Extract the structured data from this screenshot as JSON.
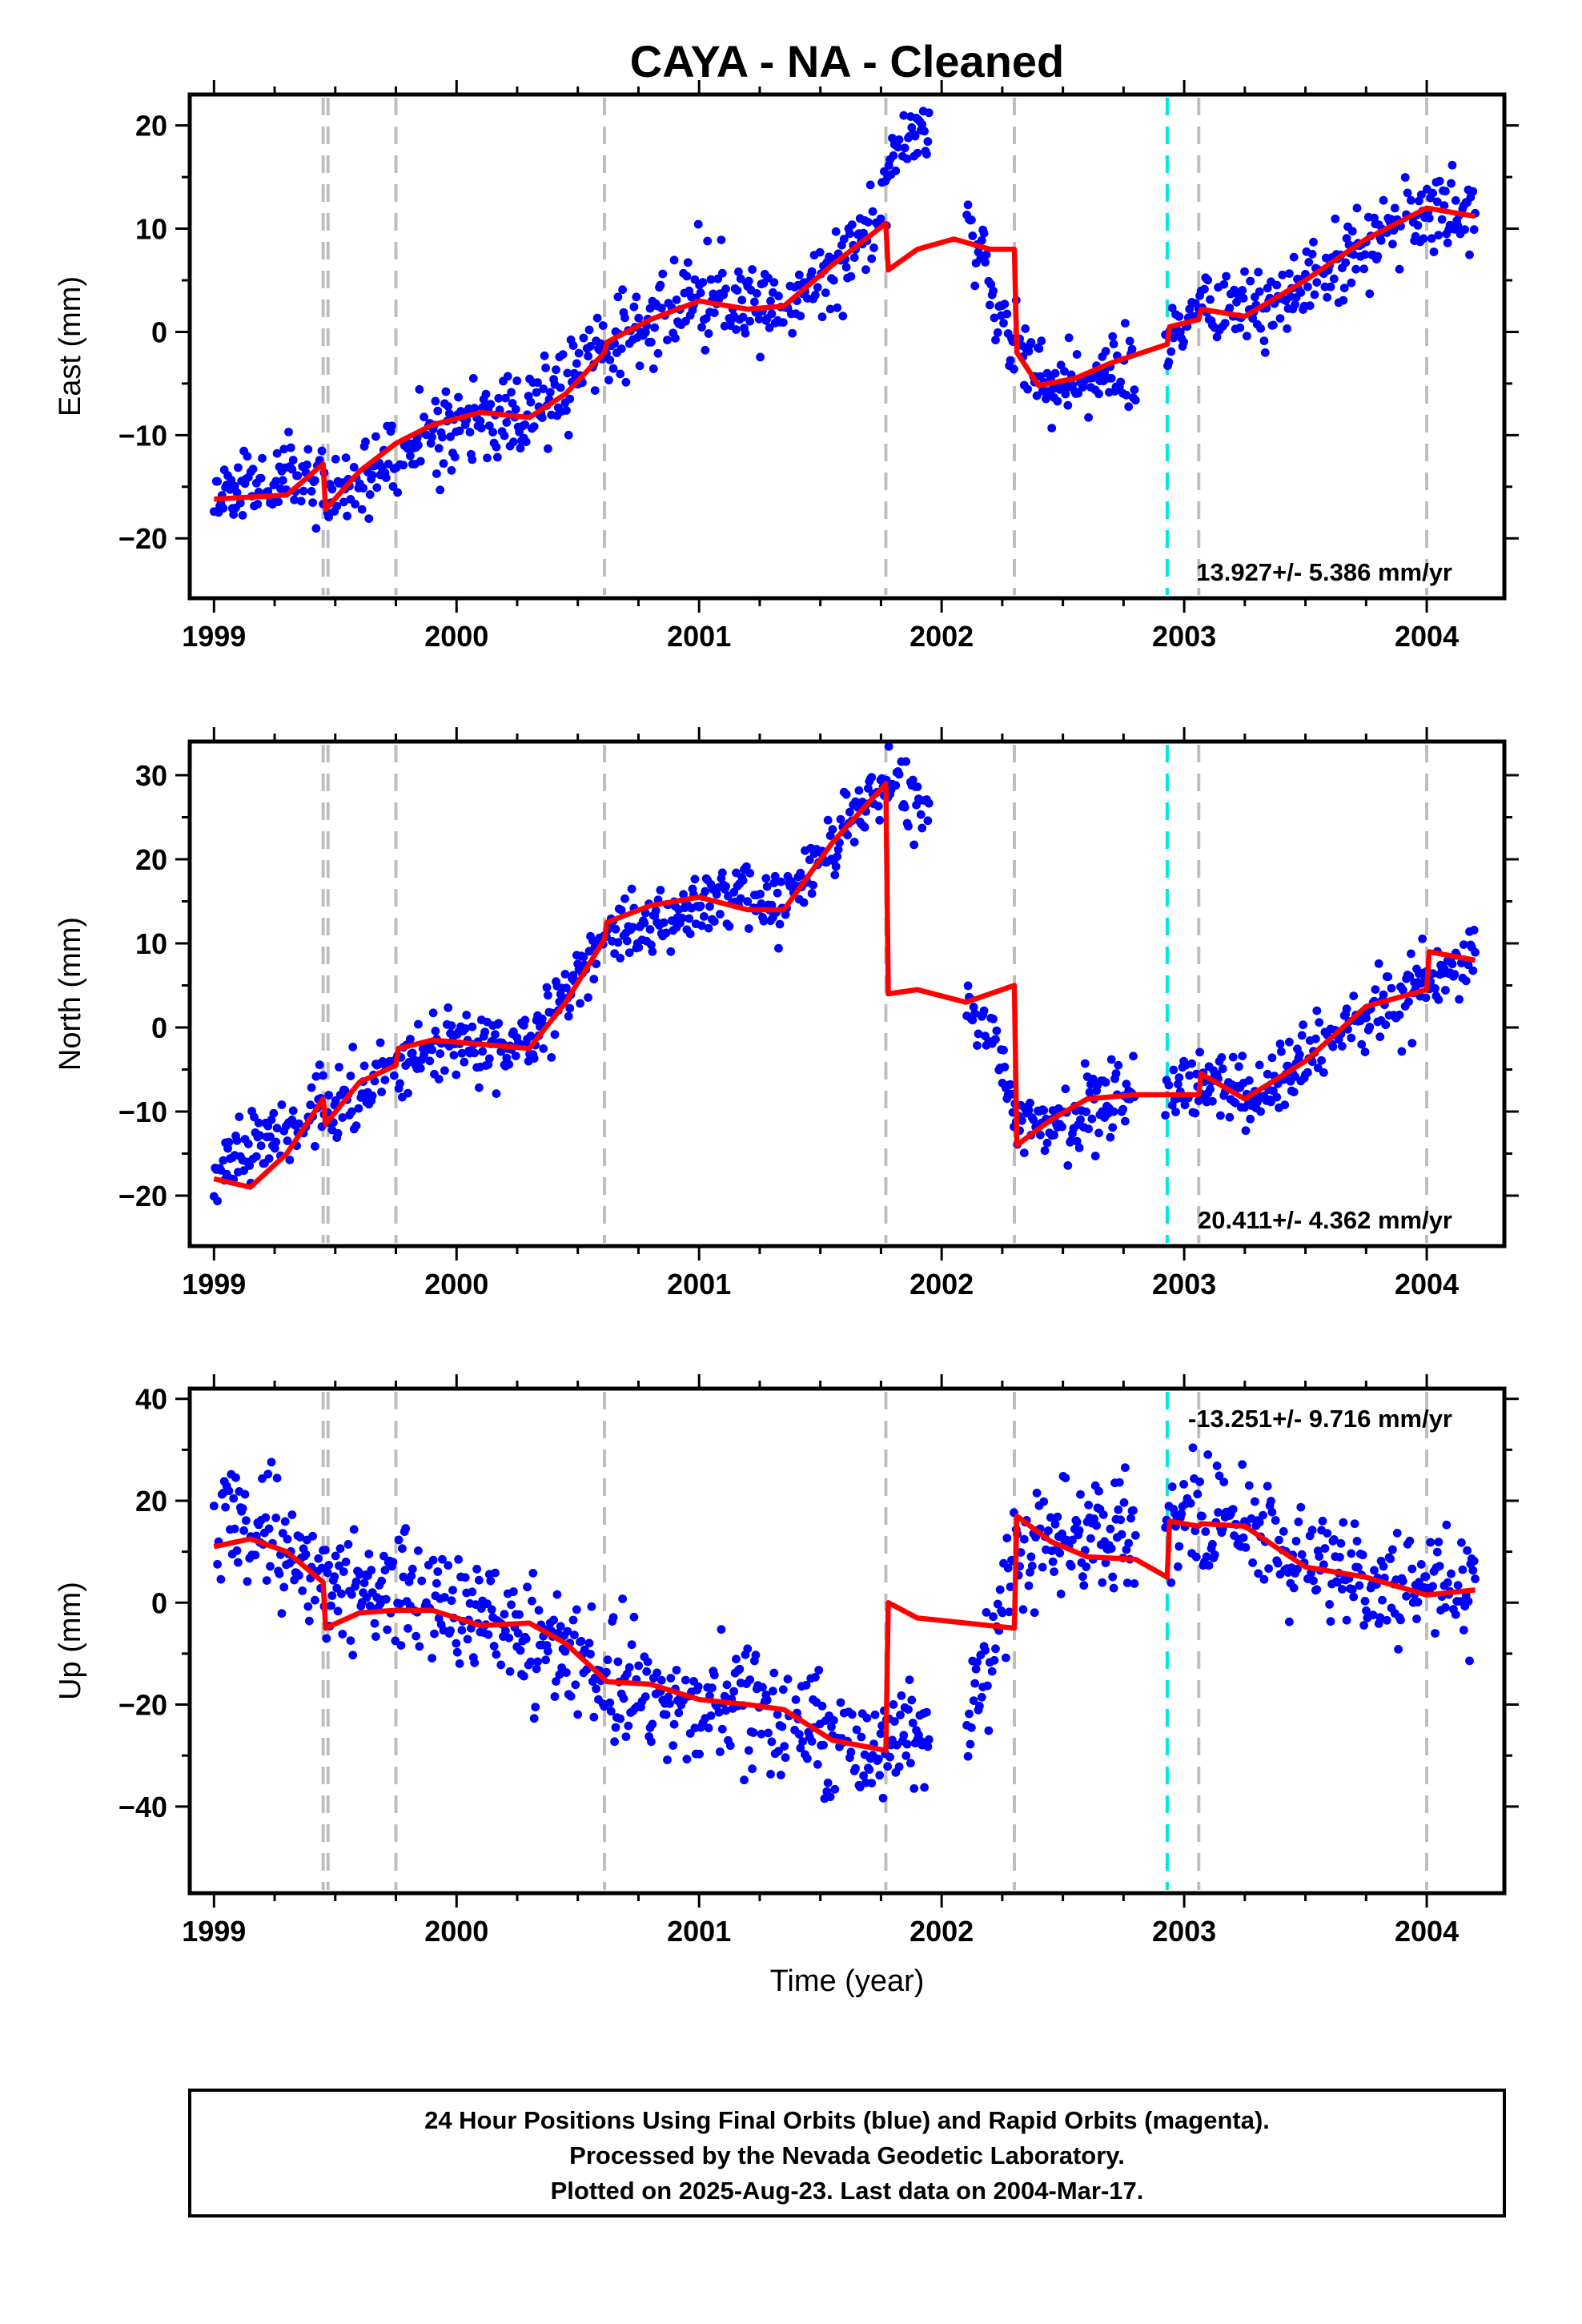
{
  "title": "CAYA  - NA - Cleaned",
  "colors": {
    "final_orbit_points": "#0000ff",
    "model_fit": "#ff0000",
    "equipment_change": "#bebebe",
    "event_line": "#00e5e5",
    "frame": "#000000"
  },
  "chart_data": [
    {
      "type": "scatter",
      "name": "east",
      "ylabel": "East (mm)",
      "xlim": [
        1998.9,
        2004.32
      ],
      "ylim": [
        -25.8,
        23
      ],
      "xticks": [
        1999,
        2000,
        2001,
        2002,
        2003,
        2004
      ],
      "xtick_labels": [
        "1999",
        "2000",
        "2001",
        "2002",
        "2003",
        "2004"
      ],
      "yticks": [
        -20,
        -10,
        0,
        10,
        20
      ],
      "ytick_labels": [
        "−20",
        "−10",
        "0",
        "10",
        "20"
      ],
      "rate_label": "13.927+/- 5.386 mm/yr",
      "rate_position": "bottom-right",
      "steps_gray": [
        1999.45,
        1999.47,
        1999.75,
        2000.61,
        2001.77,
        2002.3,
        2003.06,
        2004.0
      ],
      "steps_cyan": [
        2002.93
      ],
      "fit": {
        "x": [
          1999.0,
          1999.15,
          1999.3,
          1999.45,
          1999.46,
          1999.6,
          1999.75,
          1999.9,
          2000.1,
          2000.3,
          2000.45,
          2000.61,
          2000.62,
          2000.8,
          2001.0,
          2001.2,
          2001.35,
          2001.55,
          2001.77,
          2001.78,
          2001.9,
          2002.05,
          2002.2,
          2002.3,
          2002.31,
          2002.4,
          2002.55,
          2002.7,
          2002.93,
          2002.94,
          2003.06,
          2003.07,
          2003.25,
          2003.5,
          2003.75,
          2004.0,
          2004.2
        ],
        "y": [
          -16.2,
          -16.0,
          -15.8,
          -12.8,
          -17.2,
          -13.5,
          -10.8,
          -9.0,
          -7.8,
          -8.3,
          -6.0,
          -2.0,
          -1.0,
          1.2,
          3.0,
          2.2,
          2.5,
          6.5,
          10.5,
          6.0,
          8.0,
          9.0,
          8.0,
          8.0,
          -2.0,
          -5.2,
          -4.5,
          -3.0,
          -1.2,
          0.5,
          1.2,
          2.2,
          1.5,
          5.0,
          9.0,
          12.0,
          11.2
        ]
      },
      "trend": {
        "x": [
          1999.0,
          1999.45,
          1999.46,
          1999.75,
          2000.0,
          2000.3,
          2000.61,
          2001.0,
          2001.35,
          2001.6,
          2001.75,
          2001.8,
          2001.9,
          2002.0,
          2002.2,
          2002.31,
          2002.5,
          2002.7,
          2002.93,
          2003.06,
          2003.3,
          2003.6,
          2003.8,
          2004.0,
          2004.2
        ],
        "y": [
          -15.5,
          -14.0,
          -17.0,
          -11.5,
          -9.0,
          -8.0,
          -1.5,
          3.0,
          2.5,
          7.5,
          11.0,
          18.5,
          19.0,
          20.0,
          5.0,
          -2.0,
          -5.5,
          -4.0,
          -1.0,
          1.5,
          2.0,
          5.5,
          9.0,
          11.5,
          11.5
        ]
      },
      "noise_sd": 2.0,
      "seed": 11,
      "sample_count": 1100,
      "gaps": [
        [
          2001.95,
          2002.1
        ],
        [
          2002.8,
          2002.92
        ]
      ]
    },
    {
      "type": "scatter",
      "name": "north",
      "ylabel": "North (mm)",
      "xlim": [
        1998.9,
        2004.32
      ],
      "ylim": [
        -26,
        34
      ],
      "xticks": [
        1999,
        2000,
        2001,
        2002,
        2003,
        2004
      ],
      "xtick_labels": [
        "1999",
        "2000",
        "2001",
        "2002",
        "2003",
        "2004"
      ],
      "yticks": [
        -20,
        -10,
        0,
        10,
        20,
        30
      ],
      "ytick_labels": [
        "−20",
        "−10",
        "0",
        "10",
        "20",
        "30"
      ],
      "rate_label": "20.411+/- 4.362 mm/yr",
      "rate_position": "bottom-right",
      "steps_gray": [
        1999.45,
        1999.47,
        1999.75,
        2000.61,
        2001.77,
        2002.3,
        2003.06,
        2004.0
      ],
      "steps_cyan": [
        2002.93
      ],
      "fit": {
        "x": [
          1999.0,
          1999.15,
          1999.3,
          1999.45,
          1999.46,
          1999.6,
          1999.75,
          1999.76,
          1999.9,
          2000.1,
          2000.3,
          2000.45,
          2000.61,
          2000.62,
          2000.8,
          2001.0,
          2001.2,
          2001.35,
          2001.55,
          2001.77,
          2001.78,
          2001.9,
          2002.1,
          2002.3,
          2002.31,
          2002.45,
          2002.6,
          2002.8,
          2002.93,
          2003.06,
          2003.07,
          2003.25,
          2003.5,
          2003.75,
          2004.0,
          2004.01,
          2004.2
        ],
        "y": [
          -18.0,
          -19.0,
          -15.0,
          -8.5,
          -11.5,
          -6.5,
          -4.5,
          -2.5,
          -1.5,
          -2.0,
          -2.5,
          3.0,
          10.5,
          12.5,
          14.5,
          15.5,
          14.0,
          14.0,
          22.0,
          29.0,
          4.0,
          4.5,
          3.0,
          5.0,
          -14.0,
          -11.0,
          -8.5,
          -8.0,
          -8.0,
          -8.0,
          -5.5,
          -8.5,
          -4.0,
          2.5,
          4.5,
          9.0,
          8.0
        ]
      },
      "trend": {
        "x": [
          1999.0,
          1999.45,
          1999.46,
          1999.75,
          2000.0,
          2000.3,
          2000.61,
          2001.0,
          2001.35,
          2001.77,
          2001.8,
          2001.95,
          2002.0,
          2002.2,
          2002.31,
          2002.5,
          2002.7,
          2002.93,
          2003.06,
          2003.3,
          2003.6,
          2003.8,
          2004.0,
          2004.2
        ],
        "y": [
          -17.5,
          -9.0,
          -11.0,
          -4.5,
          -1.5,
          -2.5,
          11.0,
          14.5,
          15.0,
          29.0,
          30.0,
          25.0,
          4.0,
          0.0,
          -10.0,
          -12.0,
          -9.0,
          -8.0,
          -7.0,
          -8.0,
          -1.5,
          3.0,
          5.0,
          9.0
        ]
      },
      "noise_sd": 2.0,
      "seed": 23,
      "sample_count": 1100,
      "gaps": [
        [
          2001.95,
          2002.1
        ],
        [
          2002.8,
          2002.92
        ]
      ]
    },
    {
      "type": "scatter",
      "name": "up",
      "ylabel": "Up (mm)",
      "xlabel": "Time (year)",
      "xlim": [
        1998.9,
        2004.32
      ],
      "ylim": [
        -57,
        42
      ],
      "xticks": [
        1999,
        2000,
        2001,
        2002,
        2003,
        2004
      ],
      "xtick_labels": [
        "1999",
        "2000",
        "2001",
        "2002",
        "2003",
        "2004"
      ],
      "yticks": [
        -40,
        -20,
        0,
        20,
        40
      ],
      "ytick_labels": [
        "−40",
        "−20",
        "0",
        "20",
        "40"
      ],
      "rate_label": "-13.251+/- 9.716 mm/yr",
      "rate_position": "top-right",
      "steps_gray": [
        1999.45,
        1999.47,
        1999.75,
        2000.61,
        2001.77,
        2002.3,
        2003.06,
        2004.0
      ],
      "steps_cyan": [
        2002.93
      ],
      "fit": {
        "x": [
          1999.0,
          1999.15,
          1999.3,
          1999.45,
          1999.46,
          1999.6,
          1999.75,
          1999.9,
          2000.1,
          2000.3,
          2000.45,
          2000.61,
          2000.62,
          2000.8,
          2001.0,
          2001.2,
          2001.35,
          2001.55,
          2001.77,
          2001.78,
          2001.9,
          2002.1,
          2002.3,
          2002.31,
          2002.45,
          2002.6,
          2002.8,
          2002.93,
          2002.94,
          2003.06,
          2003.07,
          2003.25,
          2003.5,
          2003.75,
          2004.0,
          2004.2
        ],
        "y": [
          11.0,
          12.5,
          10.0,
          4.0,
          -5.0,
          -2.0,
          -1.5,
          -1.5,
          -4.5,
          -4.0,
          -8.0,
          -15.0,
          -15.5,
          -16.0,
          -19.0,
          -20.0,
          -21.0,
          -27.0,
          -29.0,
          0.0,
          -3.0,
          -4.0,
          -5.0,
          17.0,
          12.0,
          9.0,
          8.5,
          5.0,
          16.0,
          15.0,
          15.5,
          15.0,
          7.0,
          5.0,
          1.5,
          2.5
        ]
      },
      "trend": {
        "x": [
          1999.0,
          1999.2,
          1999.45,
          1999.75,
          2000.0,
          2000.3,
          2000.61,
          2001.0,
          2001.35,
          2001.6,
          2001.77,
          2001.9,
          2002.1,
          2002.2,
          2002.31,
          2002.6,
          2002.93,
          2003.06,
          2003.3,
          2003.6,
          2003.8,
          2004.0,
          2004.2
        ],
        "y": [
          16.0,
          15.0,
          2.0,
          4.0,
          -3.0,
          -5.0,
          -15.0,
          -20.0,
          -22.0,
          -28.0,
          -30.0,
          -26.0,
          -24.0,
          -8.0,
          10.0,
          15.0,
          15.0,
          16.0,
          14.0,
          6.0,
          4.0,
          2.0,
          2.0
        ]
      },
      "noise_sd": 5.5,
      "seed": 37,
      "sample_count": 1100,
      "gaps": [
        [
          2001.95,
          2002.1
        ],
        [
          2002.8,
          2002.92
        ]
      ]
    }
  ],
  "footer": {
    "lines": [
      "24 Hour Positions Using Final Orbits (blue) and Rapid Orbits (magenta).",
      "Processed by the Nevada Geodetic Laboratory.",
      "Plotted on 2025-Aug-23. Last data on 2004-Mar-17."
    ]
  }
}
